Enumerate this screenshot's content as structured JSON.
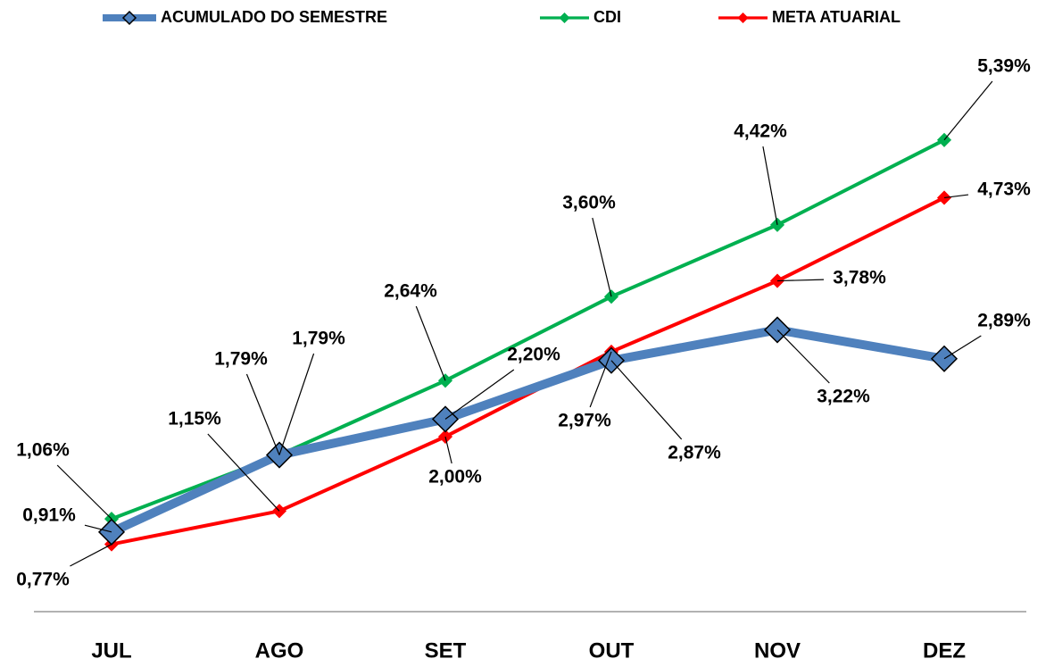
{
  "chart_data": {
    "type": "line",
    "categories": [
      "JUL",
      "AGO",
      "SET",
      "OUT",
      "NOV",
      "DEZ"
    ],
    "series": [
      {
        "name": "ACUMULADO DO SEMESTRE",
        "color": "#4f81bd",
        "values": [
          0.91,
          1.79,
          2.2,
          2.87,
          3.22,
          2.89
        ],
        "value_labels": [
          "0,91%",
          "1,79%",
          "2,20%",
          "2,87%",
          "3,22%",
          "2,89%"
        ]
      },
      {
        "name": "CDI",
        "color": "#00b050",
        "values": [
          1.06,
          1.79,
          2.64,
          3.6,
          4.42,
          5.39
        ],
        "value_labels": [
          "1,06%",
          "1,79%",
          "2,64%",
          "3,60%",
          "4,42%",
          "5,39%"
        ]
      },
      {
        "name": "META ATUARIAL",
        "color": "#ff0000",
        "values": [
          0.77,
          1.15,
          2.0,
          2.97,
          3.78,
          4.73
        ],
        "value_labels": [
          "0,77%",
          "1,15%",
          "2,00%",
          "2,97%",
          "3,78%",
          "4,73%"
        ]
      }
    ],
    "ylim": [
      0,
      6
    ]
  }
}
